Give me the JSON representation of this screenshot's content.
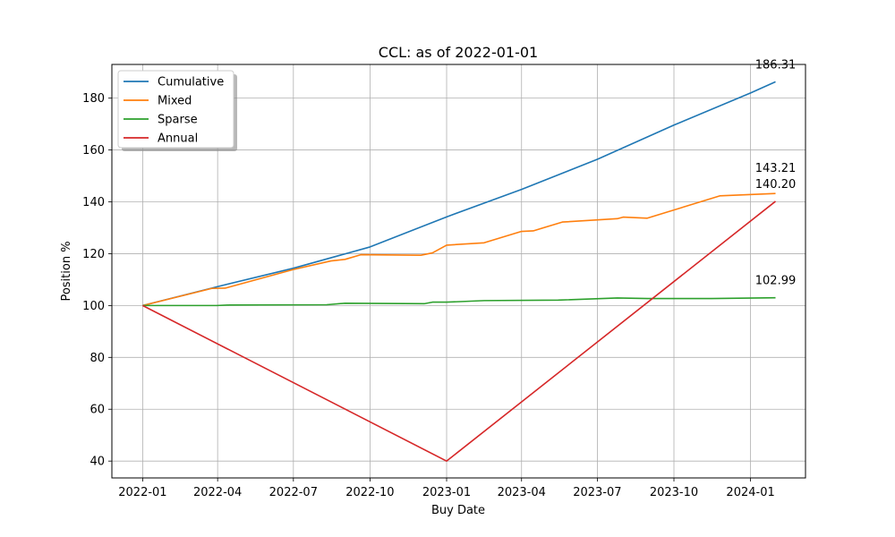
{
  "chart_data": {
    "type": "line",
    "title": "CCL: as of 2022-01-01",
    "xlabel": "Buy Date",
    "ylabel": "Position %",
    "x_range": [
      "2021-11-25",
      "2024-03-07"
    ],
    "ylim": [
      33.5,
      193
    ],
    "grid": true,
    "legend_position": "top-left",
    "x_ticks": [
      "2022-01",
      "2022-04",
      "2022-07",
      "2022-10",
      "2023-01",
      "2023-04",
      "2023-07",
      "2023-10",
      "2024-01"
    ],
    "y_ticks": [
      40,
      60,
      80,
      100,
      120,
      140,
      160,
      180
    ],
    "series": [
      {
        "name": "Cumulative",
        "color": "#1f77b4",
        "end_label": "186.31",
        "points": [
          [
            "2022-01-01",
            100.0
          ],
          [
            "2022-04-01",
            107.3
          ],
          [
            "2022-07-01",
            114.4
          ],
          [
            "2022-10-01",
            122.6
          ],
          [
            "2023-01-01",
            134.2
          ],
          [
            "2023-04-01",
            144.8
          ],
          [
            "2023-07-01",
            156.4
          ],
          [
            "2023-10-01",
            169.6
          ],
          [
            "2024-01-01",
            182.0
          ],
          [
            "2024-01-31",
            186.31
          ]
        ]
      },
      {
        "name": "Mixed",
        "color": "#ff7f0e",
        "end_label": "143.21",
        "points": [
          [
            "2022-01-01",
            100.0
          ],
          [
            "2022-03-25",
            106.6
          ],
          [
            "2022-04-10",
            106.7
          ],
          [
            "2022-07-01",
            113.9
          ],
          [
            "2022-08-15",
            117.2
          ],
          [
            "2022-09-01",
            117.8
          ],
          [
            "2022-09-20",
            119.6
          ],
          [
            "2022-12-01",
            119.4
          ],
          [
            "2022-12-15",
            120.3
          ],
          [
            "2023-01-01",
            123.3
          ],
          [
            "2023-02-15",
            124.2
          ],
          [
            "2023-04-01",
            128.6
          ],
          [
            "2023-04-15",
            128.8
          ],
          [
            "2023-05-20",
            132.2
          ],
          [
            "2023-07-25",
            133.5
          ],
          [
            "2023-08-01",
            134.1
          ],
          [
            "2023-08-30",
            133.7
          ],
          [
            "2023-11-25",
            142.3
          ],
          [
            "2024-01-31",
            143.21
          ]
        ]
      },
      {
        "name": "Sparse",
        "color": "#2ca02c",
        "end_label": "102.99",
        "points": [
          [
            "2022-01-01",
            100.0
          ],
          [
            "2022-03-31",
            100.0
          ],
          [
            "2022-04-15",
            100.2
          ],
          [
            "2022-08-10",
            100.3
          ],
          [
            "2022-09-01",
            100.9
          ],
          [
            "2022-12-05",
            100.7
          ],
          [
            "2022-12-15",
            101.3
          ],
          [
            "2023-01-01",
            101.3
          ],
          [
            "2023-02-15",
            101.9
          ],
          [
            "2023-05-15",
            102.1
          ],
          [
            "2023-07-25",
            102.9
          ],
          [
            "2023-08-31",
            102.7
          ],
          [
            "2023-11-15",
            102.7
          ],
          [
            "2024-01-31",
            102.99
          ]
        ]
      },
      {
        "name": "Annual",
        "color": "#d62728",
        "end_label": "140.20",
        "points": [
          [
            "2022-01-01",
            100.0
          ],
          [
            "2023-01-01",
            40.0
          ],
          [
            "2024-01-31",
            140.2
          ]
        ]
      }
    ]
  }
}
